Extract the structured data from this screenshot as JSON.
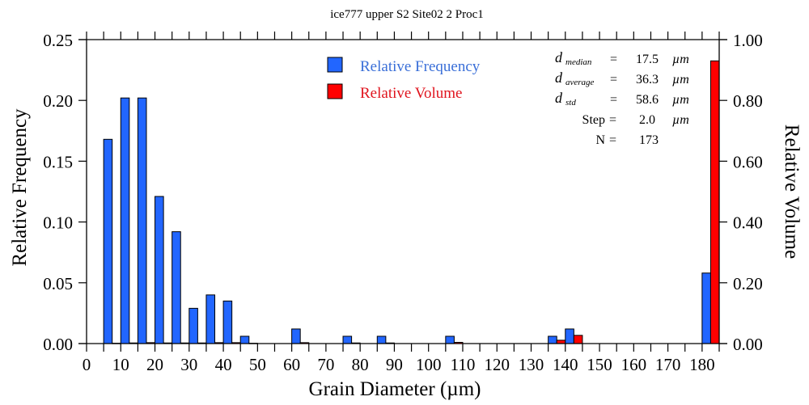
{
  "chart_data": {
    "type": "bar",
    "title": "ice777 upper S2 Site02 2 Proc1",
    "xlabel": "Grain Diameter (µm)",
    "ylabel": "Relative Frequency",
    "y2label": "Relative Volume",
    "xlim": [
      0,
      185
    ],
    "ylim": [
      0,
      0.25
    ],
    "y2lim": [
      0,
      1.0
    ],
    "x_ticks": [
      0,
      10,
      20,
      30,
      40,
      50,
      60,
      70,
      80,
      90,
      100,
      110,
      120,
      130,
      140,
      150,
      160,
      170,
      180
    ],
    "x_minor_step": 5,
    "y_ticks": [
      "0.00",
      "0.05",
      "0.10",
      "0.15",
      "0.20",
      "0.25"
    ],
    "y_tick_values": [
      0,
      0.05,
      0.1,
      0.15,
      0.2,
      0.25
    ],
    "y2_ticks": [
      "0.00",
      "0.20",
      "0.40",
      "0.60",
      "0.80",
      "1.00"
    ],
    "y2_tick_values": [
      0,
      0.2,
      0.4,
      0.6,
      0.8,
      1.0
    ],
    "bin_width": 5,
    "bin_starts": [
      5,
      10,
      15,
      20,
      25,
      30,
      35,
      40,
      45,
      60,
      75,
      85,
      105,
      135,
      140,
      180
    ],
    "series": [
      {
        "name": "Relative Frequency",
        "axis": "left",
        "color": "#2266ff",
        "values": [
          0.168,
          0.202,
          0.202,
          0.121,
          0.092,
          0.029,
          0.04,
          0.035,
          0.006,
          0.012,
          0.006,
          0.006,
          0.006,
          0.006,
          0.012,
          0.058
        ]
      },
      {
        "name": "Relative Volume",
        "axis": "right",
        "color": "#ff0000",
        "values": [
          0.001,
          0.002,
          0.003,
          0.002,
          0.002,
          0.002,
          0.003,
          0.003,
          0.001,
          0.003,
          0.002,
          0.002,
          0.004,
          0.011,
          0.027,
          0.93
        ]
      }
    ],
    "legend": {
      "placement": "top-center",
      "items": [
        {
          "label": "Relative Frequency",
          "color": "#2266ff"
        },
        {
          "label": "Relative Volume",
          "color": "#ff0000"
        }
      ]
    },
    "stats": {
      "median": {
        "symbol": "d",
        "sub": "median",
        "eq": "=",
        "value": "17.5",
        "unit": "µm"
      },
      "average": {
        "symbol": "d",
        "sub": "average",
        "eq": "=",
        "value": "36.3",
        "unit": "µm"
      },
      "std": {
        "symbol": "d",
        "sub": "std",
        "eq": "=",
        "value": "58.6",
        "unit": "µm"
      },
      "step": {
        "label": "Step",
        "eq": "=",
        "value": "2.0",
        "unit": "µm"
      },
      "n": {
        "label": "N",
        "eq": "=",
        "value": "173"
      }
    },
    "grid": false
  }
}
